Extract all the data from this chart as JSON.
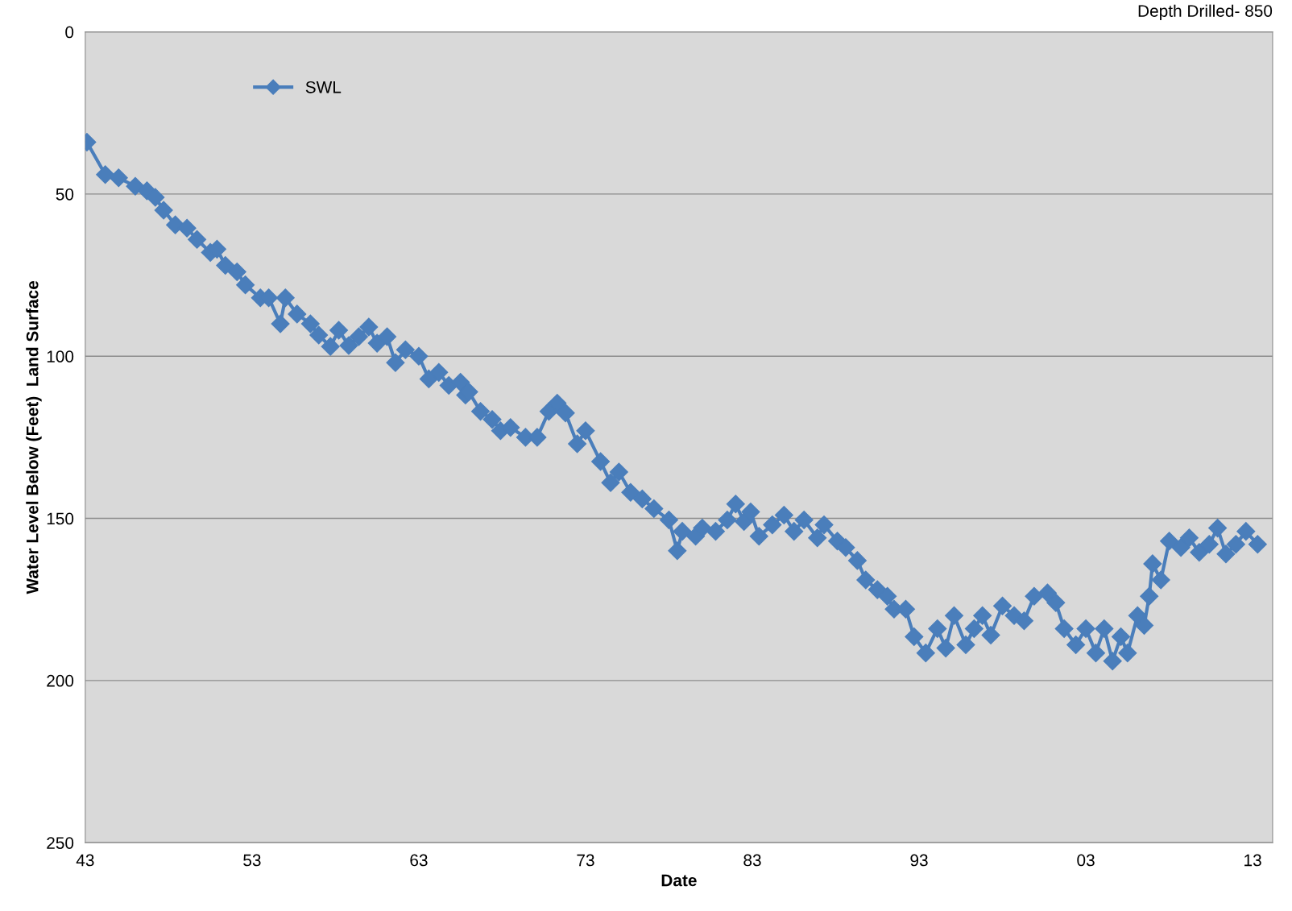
{
  "chart_data": {
    "type": "line",
    "xlabel": "Date",
    "ylabel": "Water Level Below (Feet)  Land Surface",
    "annotations": [
      "Depth Drilled- 850"
    ],
    "xlim": [
      1943,
      2014.2
    ],
    "ylim": [
      250,
      0
    ],
    "xticks": [
      {
        "value": 1943,
        "label": "43"
      },
      {
        "value": 1953,
        "label": "53"
      },
      {
        "value": 1963,
        "label": "63"
      },
      {
        "value": 1973,
        "label": "73"
      },
      {
        "value": 1983,
        "label": "83"
      },
      {
        "value": 1993,
        "label": "93"
      },
      {
        "value": 2003,
        "label": "03"
      },
      {
        "value": 2013,
        "label": "13"
      }
    ],
    "yticks": [
      0,
      50,
      100,
      150,
      200,
      250
    ],
    "grid": "y",
    "legend": "top left",
    "marker": "diamond",
    "line_style": "solid",
    "series": [
      {
        "name": "SWL",
        "color": "#4a7ebb",
        "x": [
          1943.1,
          1944.2,
          1945.0,
          1946.0,
          1946.7,
          1947.2,
          1947.7,
          1948.4,
          1949.1,
          1949.7,
          1950.5,
          1950.9,
          1951.4,
          1952.1,
          1952.6,
          1953.5,
          1954.0,
          1954.7,
          1955.0,
          1955.7,
          1956.5,
          1957.0,
          1957.7,
          1958.2,
          1958.8,
          1959.4,
          1960.0,
          1960.5,
          1961.1,
          1961.6,
          1962.2,
          1963.0,
          1963.6,
          1964.2,
          1964.8,
          1965.5,
          1965.8,
          1966.0,
          1966.7,
          1967.4,
          1967.9,
          1968.5,
          1969.4,
          1970.1,
          1970.8,
          1971.3,
          1971.8,
          1972.5,
          1973.0,
          1973.9,
          1974.5,
          1975.0,
          1975.7,
          1976.4,
          1977.1,
          1978.0,
          1978.5,
          1978.8,
          1979.6,
          1980.0,
          1980.8,
          1981.5,
          1982.0,
          1982.5,
          1982.9,
          1983.4,
          1984.2,
          1984.9,
          1985.5,
          1986.1,
          1986.9,
          1987.3,
          1988.1,
          1988.6,
          1989.3,
          1989.8,
          1990.5,
          1991.1,
          1991.5,
          1992.2,
          1992.7,
          1993.4,
          1994.1,
          1994.6,
          1995.1,
          1995.8,
          1996.3,
          1996.8,
          1997.3,
          1998.0,
          1998.7,
          1999.3,
          1999.9,
          2000.7,
          2001.2,
          2001.7,
          2002.4,
          2003.0,
          2003.6,
          2004.1,
          2004.6,
          2005.1,
          2005.5,
          2006.1,
          2006.5,
          2006.8,
          2007.0,
          2007.5,
          2008.0,
          2008.7,
          2009.2,
          2009.8,
          2010.4,
          2010.9,
          2011.4,
          2012.0,
          2012.6,
          2013.3
        ],
        "values": [
          34,
          44,
          45,
          47.6,
          49,
          51,
          55,
          59.5,
          60.5,
          64,
          68,
          67,
          72,
          74,
          78,
          82,
          82,
          90,
          82,
          87,
          90,
          93.5,
          97,
          92,
          96.7,
          94,
          91,
          96,
          94,
          102,
          98,
          100,
          107,
          105,
          109,
          108,
          112,
          111,
          117,
          119.5,
          123,
          122,
          125,
          125,
          117,
          114.5,
          117.5,
          127,
          123,
          132.5,
          139,
          135.7,
          142,
          144,
          147,
          150.5,
          160,
          154,
          155.5,
          153,
          154,
          150.5,
          145.6,
          151,
          148,
          155.5,
          152,
          149,
          154,
          150.5,
          156,
          152,
          157,
          159,
          163,
          169,
          172,
          174,
          178,
          178,
          186.5,
          191.5,
          184,
          190,
          180,
          189,
          184,
          180,
          186,
          177,
          180,
          181.6,
          174,
          173,
          176,
          184,
          189,
          184,
          191.5,
          184,
          194,
          186.5,
          191.5,
          180,
          183,
          174,
          164,
          169,
          157,
          159,
          156,
          160.5,
          158,
          153,
          161,
          158,
          154,
          158
        ]
      }
    ]
  }
}
